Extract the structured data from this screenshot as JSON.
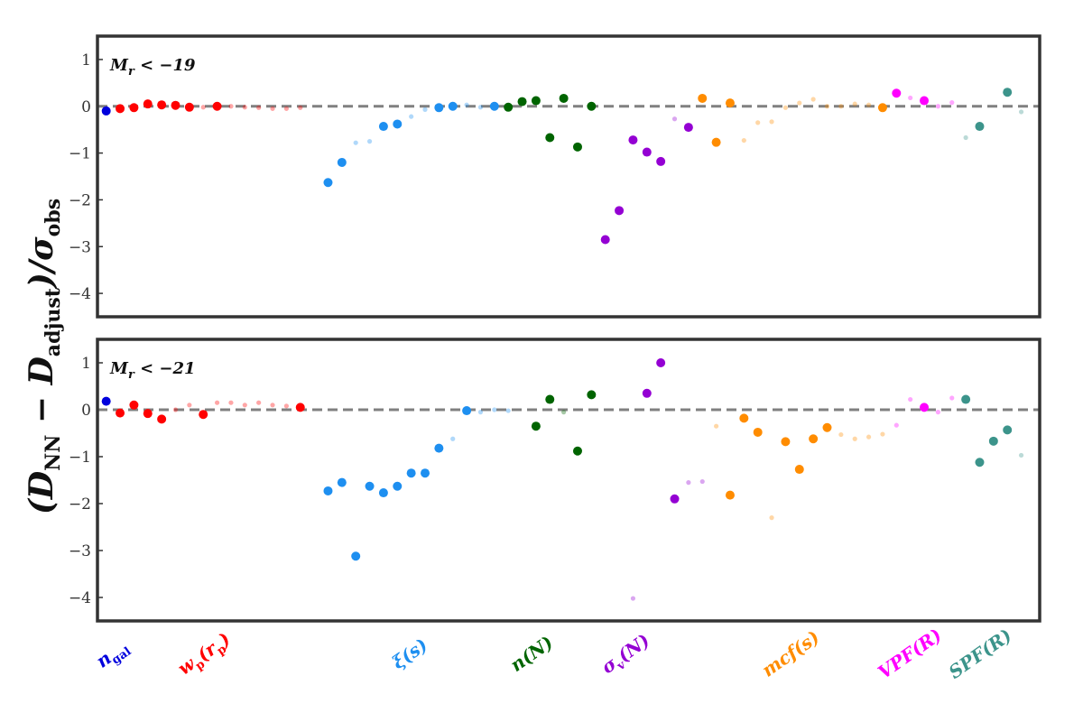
{
  "chart_data": {
    "type": "scatter",
    "ylabel": "(D_NN − D_adjust)/σ_obs",
    "ylim": [
      -4.5,
      1.5
    ],
    "yticks": [
      1,
      0,
      -1,
      -2,
      -3,
      -4
    ],
    "ytick_labels": [
      "1",
      "0",
      "−1",
      "−2",
      "−3",
      "−4"
    ],
    "reference_line": {
      "y": 0,
      "style": "dashed",
      "color": "#808080"
    },
    "grid": false,
    "categories": [
      {
        "name": "n_gal",
        "label": "n_gal",
        "color": "#0000dd",
        "x_start": 0
      },
      {
        "name": "wp",
        "label": "w_p(r_p)",
        "color": "#ff0000",
        "x_start": 1
      },
      {
        "name": "xi",
        "label": "ξ(s)",
        "color": "#1e8ff0",
        "x_start": 16
      },
      {
        "name": "nN",
        "label": "n(N)",
        "color": "#006400",
        "x_start": 29
      },
      {
        "name": "sigma",
        "label": "σ_v(N)",
        "color": "#9400d3",
        "x_start": 36
      },
      {
        "name": "mcf",
        "label": "mcf(s)",
        "color": "#ff8c00",
        "x_start": 44
      },
      {
        "name": "vpf",
        "label": "VPF(R)",
        "color": "#ff00ff",
        "x_start": 57
      },
      {
        "name": "spf",
        "label": "SPF(R)",
        "color": "#3c948b",
        "x_start": 62
      }
    ],
    "panels": [
      {
        "label": "M_r < −19",
        "points": [
          {
            "x": 0,
            "y": -0.1,
            "group": "n_gal",
            "size": "large"
          },
          {
            "x": 1,
            "y": -0.05,
            "group": "wp",
            "size": "large"
          },
          {
            "x": 2,
            "y": -0.03,
            "group": "wp",
            "size": "large"
          },
          {
            "x": 3,
            "y": 0.05,
            "group": "wp",
            "size": "large"
          },
          {
            "x": 4,
            "y": 0.03,
            "group": "wp",
            "size": "large"
          },
          {
            "x": 5,
            "y": 0.02,
            "group": "wp",
            "size": "large"
          },
          {
            "x": 6,
            "y": -0.02,
            "group": "wp",
            "size": "large"
          },
          {
            "x": 7,
            "y": -0.02,
            "group": "wp",
            "size": "small"
          },
          {
            "x": 8,
            "y": 0.0,
            "group": "wp",
            "size": "large"
          },
          {
            "x": 9,
            "y": 0.0,
            "group": "wp",
            "size": "small"
          },
          {
            "x": 10,
            "y": -0.02,
            "group": "wp",
            "size": "small"
          },
          {
            "x": 11,
            "y": -0.03,
            "group": "wp",
            "size": "small"
          },
          {
            "x": 12,
            "y": -0.05,
            "group": "wp",
            "size": "small"
          },
          {
            "x": 13,
            "y": -0.05,
            "group": "wp",
            "size": "small"
          },
          {
            "x": 14,
            "y": -0.03,
            "group": "wp",
            "size": "small"
          },
          {
            "x": 16,
            "y": -1.63,
            "group": "xi",
            "size": "large"
          },
          {
            "x": 17,
            "y": -1.2,
            "group": "xi",
            "size": "large"
          },
          {
            "x": 18,
            "y": -0.78,
            "group": "xi",
            "size": "small"
          },
          {
            "x": 19,
            "y": -0.75,
            "group": "xi",
            "size": "small"
          },
          {
            "x": 20,
            "y": -0.43,
            "group": "xi",
            "size": "large"
          },
          {
            "x": 21,
            "y": -0.38,
            "group": "xi",
            "size": "large"
          },
          {
            "x": 22,
            "y": -0.22,
            "group": "xi",
            "size": "small"
          },
          {
            "x": 23,
            "y": -0.07,
            "group": "xi",
            "size": "small"
          },
          {
            "x": 24,
            "y": -0.03,
            "group": "xi",
            "size": "large"
          },
          {
            "x": 25,
            "y": 0.0,
            "group": "xi",
            "size": "large"
          },
          {
            "x": 26,
            "y": 0.03,
            "group": "xi",
            "size": "small"
          },
          {
            "x": 27,
            "y": -0.02,
            "group": "xi",
            "size": "small"
          },
          {
            "x": 28,
            "y": 0.0,
            "group": "xi",
            "size": "large"
          },
          {
            "x": 29,
            "y": -0.02,
            "group": "nN",
            "size": "large"
          },
          {
            "x": 30,
            "y": 0.1,
            "group": "nN",
            "size": "large"
          },
          {
            "x": 31,
            "y": 0.12,
            "group": "nN",
            "size": "large"
          },
          {
            "x": 32,
            "y": -0.67,
            "group": "nN",
            "size": "large"
          },
          {
            "x": 33,
            "y": 0.17,
            "group": "nN",
            "size": "large"
          },
          {
            "x": 34,
            "y": -0.87,
            "group": "nN",
            "size": "large"
          },
          {
            "x": 35,
            "y": 0.0,
            "group": "nN",
            "size": "large"
          },
          {
            "x": 36,
            "y": -2.85,
            "group": "sigma",
            "size": "large"
          },
          {
            "x": 37,
            "y": -2.23,
            "group": "sigma",
            "size": "large"
          },
          {
            "x": 38,
            "y": -0.72,
            "group": "sigma",
            "size": "large"
          },
          {
            "x": 39,
            "y": -0.98,
            "group": "sigma",
            "size": "large"
          },
          {
            "x": 40,
            "y": -1.18,
            "group": "sigma",
            "size": "large"
          },
          {
            "x": 41,
            "y": -0.27,
            "group": "sigma",
            "size": "small"
          },
          {
            "x": 42,
            "y": -0.45,
            "group": "sigma",
            "size": "large"
          },
          {
            "x": 43,
            "y": 0.17,
            "group": "mcf",
            "size": "large"
          },
          {
            "x": 44,
            "y": -0.77,
            "group": "mcf",
            "size": "large"
          },
          {
            "x": 45,
            "y": 0.07,
            "group": "mcf",
            "size": "large"
          },
          {
            "x": 46,
            "y": -0.73,
            "group": "mcf",
            "size": "small"
          },
          {
            "x": 47,
            "y": -0.35,
            "group": "mcf",
            "size": "small"
          },
          {
            "x": 48,
            "y": -0.33,
            "group": "mcf",
            "size": "small"
          },
          {
            "x": 49,
            "y": -0.03,
            "group": "mcf",
            "size": "small"
          },
          {
            "x": 50,
            "y": 0.07,
            "group": "mcf",
            "size": "small"
          },
          {
            "x": 51,
            "y": 0.15,
            "group": "mcf",
            "size": "small"
          },
          {
            "x": 52,
            "y": 0.0,
            "group": "mcf",
            "size": "small"
          },
          {
            "x": 53,
            "y": 0.0,
            "group": "mcf",
            "size": "small"
          },
          {
            "x": 54,
            "y": 0.05,
            "group": "mcf",
            "size": "small"
          },
          {
            "x": 55,
            "y": 0.03,
            "group": "mcf",
            "size": "small"
          },
          {
            "x": 56,
            "y": -0.03,
            "group": "mcf",
            "size": "large"
          },
          {
            "x": 57,
            "y": 0.28,
            "group": "vpf",
            "size": "large"
          },
          {
            "x": 58,
            "y": 0.18,
            "group": "vpf",
            "size": "small"
          },
          {
            "x": 59,
            "y": 0.12,
            "group": "vpf",
            "size": "large"
          },
          {
            "x": 60,
            "y": 0.0,
            "group": "vpf",
            "size": "small"
          },
          {
            "x": 61,
            "y": 0.08,
            "group": "vpf",
            "size": "small"
          },
          {
            "x": 62,
            "y": -0.67,
            "group": "spf",
            "size": "small"
          },
          {
            "x": 63,
            "y": -0.43,
            "group": "spf",
            "size": "large"
          },
          {
            "x": 65,
            "y": 0.3,
            "group": "spf",
            "size": "large"
          },
          {
            "x": 66,
            "y": -0.12,
            "group": "spf",
            "size": "small"
          }
        ]
      },
      {
        "label": "M_r < −21",
        "points": [
          {
            "x": 0,
            "y": 0.18,
            "group": "n_gal",
            "size": "large"
          },
          {
            "x": 1,
            "y": -0.07,
            "group": "wp",
            "size": "large"
          },
          {
            "x": 2,
            "y": 0.1,
            "group": "wp",
            "size": "large"
          },
          {
            "x": 3,
            "y": -0.08,
            "group": "wp",
            "size": "large"
          },
          {
            "x": 4,
            "y": -0.2,
            "group": "wp",
            "size": "large"
          },
          {
            "x": 5,
            "y": 0.0,
            "group": "wp",
            "size": "small"
          },
          {
            "x": 6,
            "y": 0.1,
            "group": "wp",
            "size": "small"
          },
          {
            "x": 7,
            "y": -0.1,
            "group": "wp",
            "size": "large"
          },
          {
            "x": 8,
            "y": 0.15,
            "group": "wp",
            "size": "small"
          },
          {
            "x": 9,
            "y": 0.15,
            "group": "wp",
            "size": "small"
          },
          {
            "x": 10,
            "y": 0.1,
            "group": "wp",
            "size": "small"
          },
          {
            "x": 11,
            "y": 0.15,
            "group": "wp",
            "size": "small"
          },
          {
            "x": 12,
            "y": 0.1,
            "group": "wp",
            "size": "small"
          },
          {
            "x": 13,
            "y": 0.08,
            "group": "wp",
            "size": "small"
          },
          {
            "x": 14,
            "y": 0.05,
            "group": "wp",
            "size": "large"
          },
          {
            "x": 16,
            "y": -1.73,
            "group": "xi",
            "size": "large"
          },
          {
            "x": 17,
            "y": -1.55,
            "group": "xi",
            "size": "large"
          },
          {
            "x": 18,
            "y": -3.12,
            "group": "xi",
            "size": "large"
          },
          {
            "x": 19,
            "y": -1.63,
            "group": "xi",
            "size": "large"
          },
          {
            "x": 20,
            "y": -1.77,
            "group": "xi",
            "size": "large"
          },
          {
            "x": 21,
            "y": -1.63,
            "group": "xi",
            "size": "large"
          },
          {
            "x": 22,
            "y": -1.35,
            "group": "xi",
            "size": "large"
          },
          {
            "x": 23,
            "y": -1.35,
            "group": "xi",
            "size": "large"
          },
          {
            "x": 24,
            "y": -0.82,
            "group": "xi",
            "size": "large"
          },
          {
            "x": 25,
            "y": -0.62,
            "group": "xi",
            "size": "small"
          },
          {
            "x": 26,
            "y": -0.02,
            "group": "xi",
            "size": "large"
          },
          {
            "x": 27,
            "y": -0.05,
            "group": "xi",
            "size": "small"
          },
          {
            "x": 28,
            "y": 0.0,
            "group": "xi",
            "size": "small"
          },
          {
            "x": 29,
            "y": -0.02,
            "group": "xi",
            "size": "small"
          },
          {
            "x": 31,
            "y": -0.35,
            "group": "nN",
            "size": "large"
          },
          {
            "x": 32,
            "y": 0.22,
            "group": "nN",
            "size": "large"
          },
          {
            "x": 33,
            "y": -0.05,
            "group": "nN",
            "size": "small"
          },
          {
            "x": 34,
            "y": -0.88,
            "group": "nN",
            "size": "large"
          },
          {
            "x": 35,
            "y": 0.32,
            "group": "nN",
            "size": "large"
          },
          {
            "x": 38,
            "y": -4.02,
            "group": "sigma",
            "size": "small"
          },
          {
            "x": 39,
            "y": 0.35,
            "group": "sigma",
            "size": "large"
          },
          {
            "x": 40,
            "y": 1.0,
            "group": "sigma",
            "size": "large"
          },
          {
            "x": 41,
            "y": -1.9,
            "group": "sigma",
            "size": "large"
          },
          {
            "x": 42,
            "y": -1.55,
            "group": "sigma",
            "size": "small"
          },
          {
            "x": 43,
            "y": -1.53,
            "group": "sigma",
            "size": "small"
          },
          {
            "x": 44,
            "y": -0.35,
            "group": "mcf",
            "size": "small"
          },
          {
            "x": 45,
            "y": -1.82,
            "group": "mcf",
            "size": "large"
          },
          {
            "x": 46,
            "y": -0.18,
            "group": "mcf",
            "size": "large"
          },
          {
            "x": 47,
            "y": -0.48,
            "group": "mcf",
            "size": "large"
          },
          {
            "x": 48,
            "y": -2.3,
            "group": "mcf",
            "size": "small"
          },
          {
            "x": 49,
            "y": -0.68,
            "group": "mcf",
            "size": "large"
          },
          {
            "x": 50,
            "y": -1.27,
            "group": "mcf",
            "size": "large"
          },
          {
            "x": 51,
            "y": -0.62,
            "group": "mcf",
            "size": "large"
          },
          {
            "x": 52,
            "y": -0.38,
            "group": "mcf",
            "size": "large"
          },
          {
            "x": 53,
            "y": -0.53,
            "group": "mcf",
            "size": "small"
          },
          {
            "x": 54,
            "y": -0.62,
            "group": "mcf",
            "size": "small"
          },
          {
            "x": 55,
            "y": -0.58,
            "group": "mcf",
            "size": "small"
          },
          {
            "x": 56,
            "y": -0.52,
            "group": "mcf",
            "size": "small"
          },
          {
            "x": 57,
            "y": -0.33,
            "group": "vpf",
            "size": "small"
          },
          {
            "x": 58,
            "y": 0.22,
            "group": "vpf",
            "size": "small"
          },
          {
            "x": 59,
            "y": 0.05,
            "group": "vpf",
            "size": "large"
          },
          {
            "x": 60,
            "y": -0.05,
            "group": "vpf",
            "size": "small"
          },
          {
            "x": 61,
            "y": 0.25,
            "group": "vpf",
            "size": "small"
          },
          {
            "x": 62,
            "y": 0.22,
            "group": "spf",
            "size": "large"
          },
          {
            "x": 63,
            "y": -1.12,
            "group": "spf",
            "size": "large"
          },
          {
            "x": 64,
            "y": -0.67,
            "group": "spf",
            "size": "large"
          },
          {
            "x": 65,
            "y": -0.43,
            "group": "spf",
            "size": "large"
          },
          {
            "x": 66,
            "y": -0.97,
            "group": "spf",
            "size": "small"
          }
        ]
      }
    ]
  }
}
